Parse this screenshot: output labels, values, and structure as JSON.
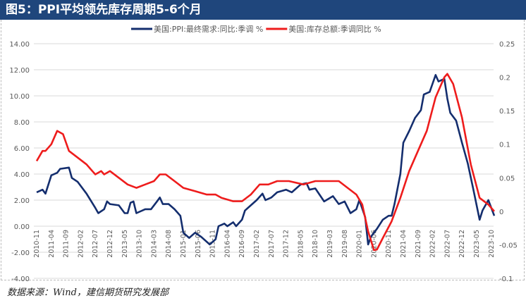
{
  "title": "图5：PPI平均领先库存周期5-6个月",
  "source": "数据来源：Wind，建信期货研究发展部",
  "chart_data": {
    "type": "line",
    "title": "图5：PPI平均领先库存周期5-6个月",
    "legend_placement": "top",
    "grid": true,
    "left_axis": {
      "ylim": [
        -4,
        14
      ],
      "ticks": [
        "14.00",
        "12.00",
        "10.00",
        "8.00",
        "6.00",
        "4.00",
        "2.00",
        "0.00",
        "-2.00",
        "-4.00"
      ]
    },
    "right_axis": {
      "ylim": [
        -0.1,
        0.25
      ],
      "ticks": [
        "0.25",
        "0.2",
        "0.15",
        "0.1",
        "0.05",
        "0",
        "-0.05",
        "-0.1"
      ]
    },
    "x_range": [
      "2010-11",
      "2023-11"
    ],
    "x_ticks": [
      "2010-11",
      "2011-04",
      "2011-09",
      "2012-02",
      "2012-07",
      "2012-12",
      "2013-05",
      "2013-10",
      "2014-03",
      "2014-08",
      "2015-01",
      "2015-06",
      "2015-11",
      "2016-04",
      "2016-09",
      "2017-02",
      "2017-07",
      "2017-12",
      "2018-05",
      "2018-10",
      "2019-03",
      "2019-08",
      "2020-01",
      "2020-06",
      "2020-11",
      "2021-04",
      "2021-09",
      "2022-02",
      "2022-07",
      "2022-12",
      "2023-05",
      "2023-10"
    ],
    "series": [
      {
        "name": "美国:PPI:最终需求:同比:季调 %",
        "axis": "left",
        "color": "#142e6e",
        "points": [
          [
            "2010-11",
            2.6
          ],
          [
            "2011-01",
            2.8
          ],
          [
            "2011-02",
            2.5
          ],
          [
            "2011-04",
            3.9
          ],
          [
            "2011-06",
            4.1
          ],
          [
            "2011-07",
            4.4
          ],
          [
            "2011-10",
            4.5
          ],
          [
            "2011-11",
            3.7
          ],
          [
            "2012-01",
            3.4
          ],
          [
            "2012-04",
            2.5
          ],
          [
            "2012-07",
            1.4
          ],
          [
            "2012-08",
            1.0
          ],
          [
            "2012-10",
            1.3
          ],
          [
            "2012-11",
            1.9
          ],
          [
            "2012-12",
            1.7
          ],
          [
            "2013-03",
            1.6
          ],
          [
            "2013-05",
            1.0
          ],
          [
            "2013-06",
            1.0
          ],
          [
            "2013-07",
            1.8
          ],
          [
            "2013-08",
            1.9
          ],
          [
            "2013-09",
            1.0
          ],
          [
            "2013-12",
            1.3
          ],
          [
            "2014-02",
            1.3
          ],
          [
            "2014-04",
            1.9
          ],
          [
            "2014-05",
            2.2
          ],
          [
            "2014-06",
            1.7
          ],
          [
            "2014-08",
            1.7
          ],
          [
            "2014-10",
            1.3
          ],
          [
            "2014-12",
            0.8
          ],
          [
            "2015-01",
            -0.5
          ],
          [
            "2015-03",
            -0.9
          ],
          [
            "2015-05",
            -0.5
          ],
          [
            "2015-07",
            -0.8
          ],
          [
            "2015-10",
            -1.4
          ],
          [
            "2015-12",
            -1.0
          ],
          [
            "2016-01",
            0.0
          ],
          [
            "2016-03",
            0.2
          ],
          [
            "2016-04",
            0.0
          ],
          [
            "2016-06",
            0.3
          ],
          [
            "2016-07",
            0.0
          ],
          [
            "2016-09",
            0.5
          ],
          [
            "2016-10",
            1.2
          ],
          [
            "2016-12",
            1.6
          ],
          [
            "2017-02",
            2.0
          ],
          [
            "2017-04",
            2.5
          ],
          [
            "2017-05",
            2.0
          ],
          [
            "2017-07",
            2.2
          ],
          [
            "2017-09",
            2.6
          ],
          [
            "2017-12",
            2.8
          ],
          [
            "2018-02",
            2.6
          ],
          [
            "2018-05",
            3.2
          ],
          [
            "2018-07",
            3.3
          ],
          [
            "2018-08",
            2.8
          ],
          [
            "2018-10",
            2.9
          ],
          [
            "2019-01",
            1.9
          ],
          [
            "2019-04",
            2.3
          ],
          [
            "2019-06",
            1.7
          ],
          [
            "2019-08",
            1.9
          ],
          [
            "2019-10",
            1.0
          ],
          [
            "2019-12",
            1.3
          ],
          [
            "2020-01",
            2.0
          ],
          [
            "2020-03",
            0.7
          ],
          [
            "2020-04",
            -1.4
          ],
          [
            "2020-05",
            -0.8
          ],
          [
            "2020-07",
            -0.2
          ],
          [
            "2020-09",
            0.5
          ],
          [
            "2020-11",
            0.8
          ],
          [
            "2020-12",
            0.8
          ],
          [
            "2021-01",
            1.7
          ],
          [
            "2021-03",
            4.0
          ],
          [
            "2021-04",
            6.4
          ],
          [
            "2021-06",
            7.3
          ],
          [
            "2021-08",
            8.3
          ],
          [
            "2021-10",
            8.9
          ],
          [
            "2021-11",
            10.1
          ],
          [
            "2022-01",
            10.3
          ],
          [
            "2022-03",
            11.6
          ],
          [
            "2022-04",
            11.1
          ],
          [
            "2022-06",
            11.3
          ],
          [
            "2022-07",
            9.8
          ],
          [
            "2022-08",
            8.7
          ],
          [
            "2022-10",
            8.1
          ],
          [
            "2022-12",
            6.4
          ],
          [
            "2023-02",
            4.8
          ],
          [
            "2023-04",
            2.7
          ],
          [
            "2023-06",
            0.5
          ],
          [
            "2023-07",
            1.2
          ],
          [
            "2023-09",
            2.0
          ],
          [
            "2023-11",
            0.8
          ]
        ]
      },
      {
        "name": "美国:库存总额:季调同比 %",
        "axis": "right",
        "color": "#ee1c1c",
        "points": [
          [
            "2010-11",
            0.075
          ],
          [
            "2011-01",
            0.09
          ],
          [
            "2011-02",
            0.09
          ],
          [
            "2011-04",
            0.1
          ],
          [
            "2011-06",
            0.12
          ],
          [
            "2011-08",
            0.115
          ],
          [
            "2011-10",
            0.09
          ],
          [
            "2012-01",
            0.08
          ],
          [
            "2012-04",
            0.07
          ],
          [
            "2012-06",
            0.06
          ],
          [
            "2012-07",
            0.055
          ],
          [
            "2012-09",
            0.06
          ],
          [
            "2012-10",
            0.055
          ],
          [
            "2012-12",
            0.06
          ],
          [
            "2013-03",
            0.05
          ],
          [
            "2013-06",
            0.04
          ],
          [
            "2013-09",
            0.035
          ],
          [
            "2013-12",
            0.04
          ],
          [
            "2014-03",
            0.045
          ],
          [
            "2014-05",
            0.055
          ],
          [
            "2014-07",
            0.055
          ],
          [
            "2014-10",
            0.045
          ],
          [
            "2015-01",
            0.035
          ],
          [
            "2015-05",
            0.03
          ],
          [
            "2015-09",
            0.025
          ],
          [
            "2015-12",
            0.025
          ],
          [
            "2016-02",
            0.02
          ],
          [
            "2016-06",
            0.015
          ],
          [
            "2016-09",
            0.015
          ],
          [
            "2016-12",
            0.025
          ],
          [
            "2017-03",
            0.04
          ],
          [
            "2017-06",
            0.04
          ],
          [
            "2017-09",
            0.045
          ],
          [
            "2018-01",
            0.045
          ],
          [
            "2018-06",
            0.04
          ],
          [
            "2018-10",
            0.045
          ],
          [
            "2019-03",
            0.045
          ],
          [
            "2019-06",
            0.045
          ],
          [
            "2019-09",
            0.035
          ],
          [
            "2019-12",
            0.025
          ],
          [
            "2020-02",
            0.01
          ],
          [
            "2020-04",
            -0.03
          ],
          [
            "2020-06",
            -0.058
          ],
          [
            "2020-07",
            -0.057
          ],
          [
            "2020-09",
            -0.04
          ],
          [
            "2020-12",
            -0.015
          ],
          [
            "2021-03",
            0.02
          ],
          [
            "2021-06",
            0.06
          ],
          [
            "2021-09",
            0.09
          ],
          [
            "2021-12",
            0.12
          ],
          [
            "2022-03",
            0.17
          ],
          [
            "2022-06",
            0.2
          ],
          [
            "2022-07",
            0.205
          ],
          [
            "2022-09",
            0.19
          ],
          [
            "2022-12",
            0.14
          ],
          [
            "2023-03",
            0.07
          ],
          [
            "2023-06",
            0.02
          ],
          [
            "2023-09",
            0.01
          ],
          [
            "2023-11",
            0.0
          ]
        ]
      }
    ]
  }
}
